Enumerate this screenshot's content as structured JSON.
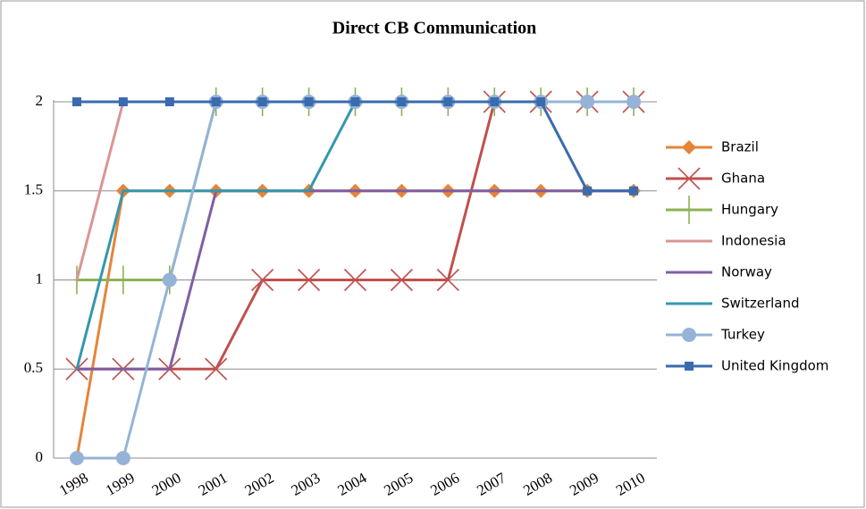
{
  "chart_data": {
    "type": "line",
    "title": "Direct CB Communication",
    "categories": [
      "1998",
      "1999",
      "2000",
      "2001",
      "2002",
      "2003",
      "2004",
      "2005",
      "2006",
      "2007",
      "2008",
      "2009",
      "2010"
    ],
    "series": [
      {
        "name": "Brazil",
        "color": "#E5853A",
        "marker": "diamond",
        "values": [
          0,
          1.5,
          1.5,
          1.5,
          1.5,
          1.5,
          1.5,
          1.5,
          1.5,
          1.5,
          1.5,
          1.5,
          1.5
        ]
      },
      {
        "name": "Ghana",
        "color": "#C0504D",
        "marker": "x",
        "values": [
          0.5,
          0.5,
          0.5,
          0.5,
          1,
          1,
          1,
          1,
          1,
          2,
          2,
          2,
          2
        ]
      },
      {
        "name": "Hungary",
        "color": "#8DB255",
        "marker": "plus",
        "values": [
          1,
          1,
          1,
          2,
          2,
          2,
          2,
          2,
          2,
          2,
          2,
          2,
          2
        ]
      },
      {
        "name": "Indonesia",
        "color": "#D99694",
        "marker": "none",
        "values": [
          1,
          2,
          2,
          2,
          2,
          2,
          2,
          2,
          2,
          2,
          2,
          2,
          2
        ]
      },
      {
        "name": "Norway",
        "color": "#7F5FA3",
        "marker": "none",
        "values": [
          0.5,
          0.5,
          0.5,
          1.5,
          1.5,
          1.5,
          1.5,
          1.5,
          1.5,
          1.5,
          1.5,
          1.5,
          1.5
        ]
      },
      {
        "name": "Switzerland",
        "color": "#3597AE",
        "marker": "none",
        "values": [
          0.5,
          1.5,
          1.5,
          1.5,
          1.5,
          1.5,
          2,
          2,
          2,
          2,
          2,
          2,
          2
        ]
      },
      {
        "name": "Turkey",
        "color": "#95B3D7",
        "marker": "circle",
        "values": [
          0,
          0,
          1,
          2,
          2,
          2,
          2,
          2,
          2,
          2,
          2,
          2,
          2
        ]
      },
      {
        "name": "United Kingdom",
        "color": "#3A6BAF",
        "marker": "square",
        "values": [
          2,
          2,
          2,
          2,
          2,
          2,
          2,
          2,
          2,
          2,
          2,
          1.5,
          1.5
        ]
      }
    ],
    "ylim": [
      0,
      2
    ],
    "yticks": [
      0,
      0.5,
      1,
      1.5,
      2
    ],
    "grid": true,
    "legend": "right"
  }
}
